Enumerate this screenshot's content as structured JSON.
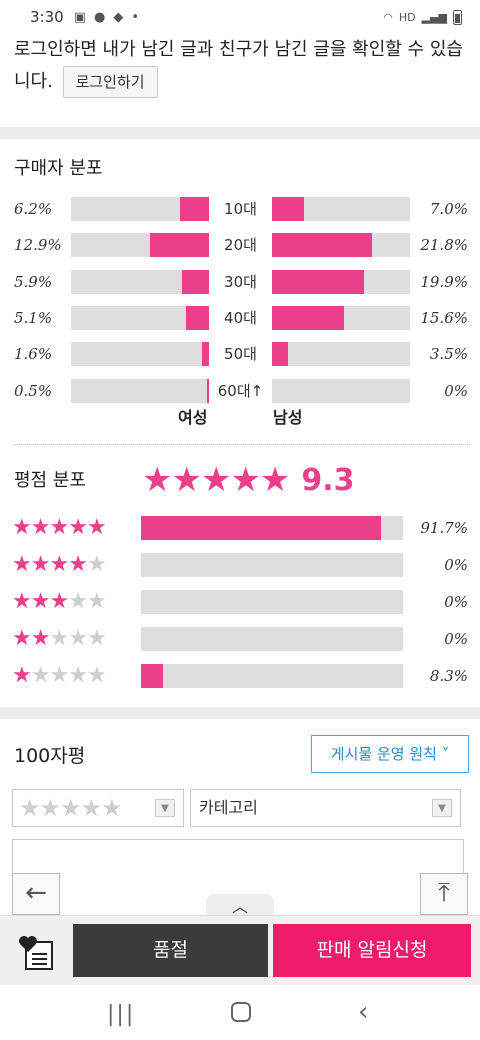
{
  "status_bar": {
    "time": "3:30",
    "signal_label": "HD"
  },
  "login_notice": {
    "text": "로그인하면 내가 남긴 글과 친구가 남긴 글을 확인할 수 있습니다.",
    "button_label": "로그인하기"
  },
  "buyer_distribution": {
    "title": "구매자 분포",
    "rows": [
      {
        "age": "10대",
        "female_pct": "6.2%",
        "female_value": 6.2,
        "male_pct": "7.0%",
        "male_value": 7.0
      },
      {
        "age": "20대",
        "female_pct": "12.9%",
        "female_value": 12.9,
        "male_pct": "21.8%",
        "male_value": 21.8
      },
      {
        "age": "30대",
        "female_pct": "5.9%",
        "female_value": 5.9,
        "male_pct": "19.9%",
        "male_value": 19.9
      },
      {
        "age": "40대",
        "female_pct": "5.1%",
        "female_value": 5.1,
        "male_pct": "15.6%",
        "male_value": 15.6
      },
      {
        "age": "50대",
        "female_pct": "1.6%",
        "female_value": 1.6,
        "male_pct": "3.5%",
        "male_value": 3.5
      },
      {
        "age": "60대↑",
        "female_pct": "0.5%",
        "female_value": 0.5,
        "male_pct": "0%",
        "male_value": 0
      }
    ],
    "female_label": "여성",
    "male_label": "남성"
  },
  "rating_distribution": {
    "title": "평점 분포",
    "average_score": "9.3",
    "average_stars": 5,
    "rows": [
      {
        "stars": 5,
        "pct": "91.7%",
        "value": 91.7
      },
      {
        "stars": 4,
        "pct": "0%",
        "value": 0
      },
      {
        "stars": 3,
        "pct": "0%",
        "value": 0
      },
      {
        "stars": 2,
        "pct": "0%",
        "value": 0
      },
      {
        "stars": 1,
        "pct": "8.3%",
        "value": 8.3
      }
    ]
  },
  "review": {
    "title": "100자평",
    "policy_button": "게시물 운영 원칙",
    "rating_select_stars": 5,
    "category_select": "카테고리"
  },
  "bottom_bar": {
    "sold_out_label": "품절",
    "alert_label": "판매 알림신청"
  },
  "colors": {
    "accent": "#ea3f8a",
    "alert_button": "#ee1c6a",
    "sold_button": "#3b3b3b",
    "link_blue": "#1f8fc9"
  }
}
